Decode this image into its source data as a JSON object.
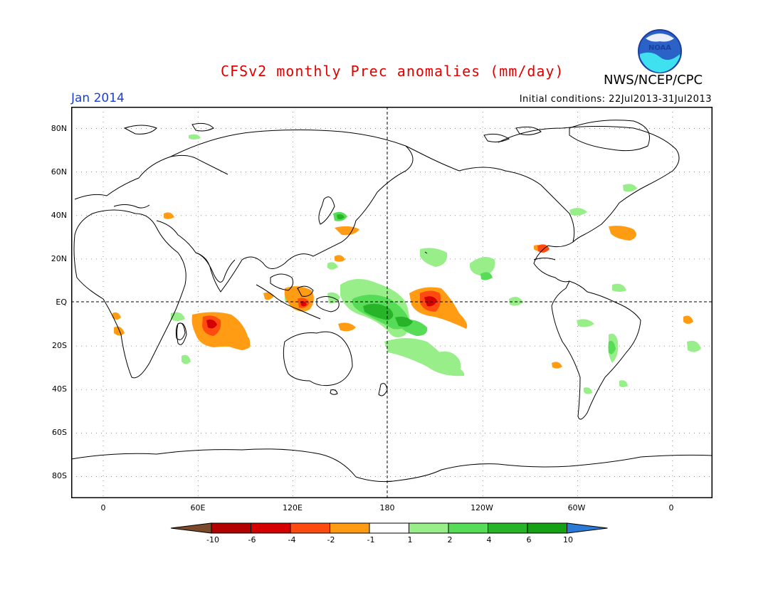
{
  "header": {
    "title": "CFSv2 monthly Prec anomalies (mm/day)",
    "agency": "NWS/NCEP/CPC",
    "logo_text": "NOAA",
    "month": "Jan 2014",
    "initial_conditions": "Initial conditions: 22Jul2013-31Jul2013"
  },
  "map": {
    "lat_labels": [
      "80N",
      "60N",
      "40N",
      "20N",
      "EQ",
      "20S",
      "40S",
      "60S",
      "80S"
    ],
    "lon_labels": [
      "0",
      "60E",
      "120E",
      "180",
      "120W",
      "60W",
      "0"
    ],
    "lat_values": [
      80,
      60,
      40,
      20,
      0,
      -20,
      -40,
      -60,
      -80
    ],
    "lon_values": [
      0,
      60,
      120,
      180,
      240,
      300,
      360
    ]
  },
  "colorbar": {
    "ticks": [
      "-10",
      "-6",
      "-4",
      "-2",
      "-1",
      "1",
      "2",
      "4",
      "6",
      "10"
    ],
    "colors": {
      "lt_-10": "#7a4a2a",
      "-10_-6": "#b20000",
      "-6_-4": "#d40000",
      "-4_-2": "#ff4a10",
      "-2_-1": "#ff9c14",
      "-1_1": "#ffffff",
      "1_2": "#98ee88",
      "2_4": "#56dc56",
      "4_6": "#28b428",
      "6_10": "#16a016",
      "gt_10": "#2a7bd8"
    }
  },
  "anomaly_regions": [
    {
      "name": "central-pacific-dry",
      "level": "-4..-2",
      "lon": 210,
      "lat": -2
    },
    {
      "name": "west-pacific-wet",
      "level": "4..6",
      "lon": 185,
      "lat": -8
    },
    {
      "name": "south-pacific-wet",
      "level": "1..2",
      "lon": 200,
      "lat": -25
    },
    {
      "name": "indian-ocean-dry",
      "level": "-4..-2",
      "lon": 78,
      "lat": -12
    },
    {
      "name": "maritime-continent-dry",
      "level": "-4..-2",
      "lon": 127,
      "lat": -3
    },
    {
      "name": "north-atlantic-dry",
      "level": "-2..-1",
      "lon": 323,
      "lat": 30
    },
    {
      "name": "south-atlantic-wet",
      "level": "1..2",
      "lon": 318,
      "lat": -20
    },
    {
      "name": "northwest-pacific-wet",
      "level": "2..4",
      "lon": 142,
      "lat": 38
    }
  ]
}
